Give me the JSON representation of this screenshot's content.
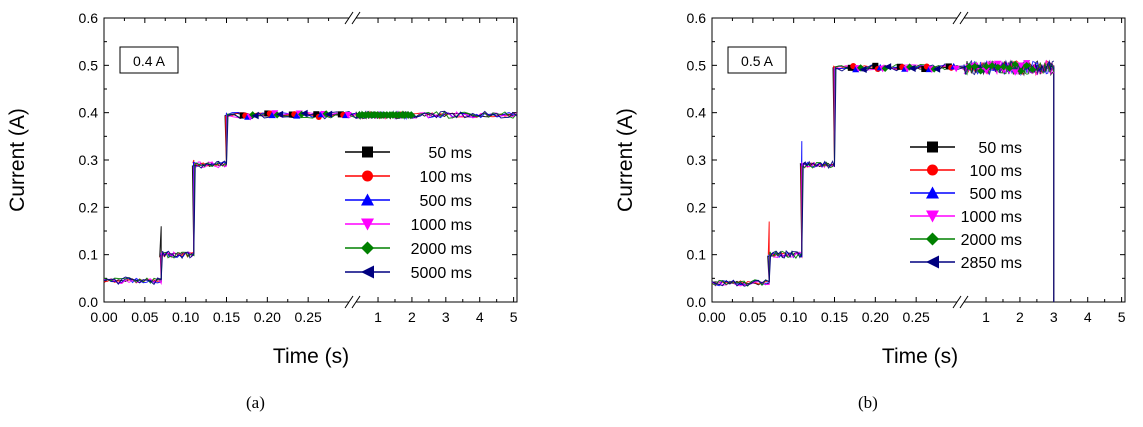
{
  "chart_data": [
    {
      "type": "line",
      "panel": "a",
      "caption": "(a)",
      "annotation": "0.4 A",
      "xlabel": "Time (s)",
      "ylabel": "Current (A)",
      "ylim": [
        0,
        0.6
      ],
      "yticks": [
        "0.0",
        "0.1",
        "0.2",
        "0.3",
        "0.4",
        "0.5",
        "0.6"
      ],
      "xlim_segment1": [
        0,
        0.3
      ],
      "xticks_segment1": [
        "0.00",
        "0.05",
        "0.10",
        "0.15",
        "0.20",
        "0.25"
      ],
      "xlim_segment2": [
        0.35,
        5.1
      ],
      "xticks_segment2": [
        "1",
        "2",
        "3",
        "4",
        "5"
      ],
      "axis_break": true,
      "legend_position": "right",
      "series": [
        {
          "name": "50 ms",
          "color": "#000000",
          "marker": "square"
        },
        {
          "name": "100 ms",
          "color": "#ff0000",
          "marker": "circle"
        },
        {
          "name": "500 ms",
          "color": "#0000ff",
          "marker": "triangle-up"
        },
        {
          "name": "1000 ms",
          "color": "#ff00ff",
          "marker": "triangle-down"
        },
        {
          "name": "2000 ms",
          "color": "#008000",
          "marker": "diamond"
        },
        {
          "name": "5000 ms",
          "color": "#000080",
          "marker": "triangle-left"
        }
      ],
      "levels": [
        {
          "t_start": 0.0,
          "t_end": 0.07,
          "current": 0.045
        },
        {
          "t_start": 0.07,
          "t_end": 0.11,
          "current": 0.1
        },
        {
          "t_start": 0.11,
          "t_end": 0.15,
          "current": 0.29
        },
        {
          "t_start": 0.15,
          "t_end": 5.1,
          "current": 0.395
        }
      ],
      "drop_time": null
    },
    {
      "type": "line",
      "panel": "b",
      "caption": "(b)",
      "annotation": "0.5 A",
      "xlabel": "Time (s)",
      "ylabel": "Current (A)",
      "ylim": [
        0,
        0.6
      ],
      "yticks": [
        "0.0",
        "0.1",
        "0.2",
        "0.3",
        "0.4",
        "0.5",
        "0.6"
      ],
      "xlim_segment1": [
        0,
        0.3
      ],
      "xticks_segment1": [
        "0.00",
        "0.05",
        "0.10",
        "0.15",
        "0.20",
        "0.25"
      ],
      "xlim_segment2": [
        0.35,
        5.1
      ],
      "xticks_segment2": [
        "1",
        "2",
        "3",
        "4",
        "5"
      ],
      "axis_break": true,
      "legend_position": "right",
      "series": [
        {
          "name": "50 ms",
          "color": "#000000",
          "marker": "square"
        },
        {
          "name": "100 ms",
          "color": "#ff0000",
          "marker": "circle"
        },
        {
          "name": "500 ms",
          "color": "#0000ff",
          "marker": "triangle-up"
        },
        {
          "name": "1000 ms",
          "color": "#ff00ff",
          "marker": "triangle-down"
        },
        {
          "name": "2000 ms",
          "color": "#008000",
          "marker": "diamond"
        },
        {
          "name": "2850 ms",
          "color": "#000080",
          "marker": "triangle-left"
        }
      ],
      "levels": [
        {
          "t_start": 0.0,
          "t_end": 0.07,
          "current": 0.04
        },
        {
          "t_start": 0.07,
          "t_end": 0.11,
          "current": 0.1
        },
        {
          "t_start": 0.11,
          "t_end": 0.15,
          "current": 0.29
        },
        {
          "t_start": 0.15,
          "t_end": 3.0,
          "current": 0.495
        }
      ],
      "drop_time": 3.0
    }
  ]
}
